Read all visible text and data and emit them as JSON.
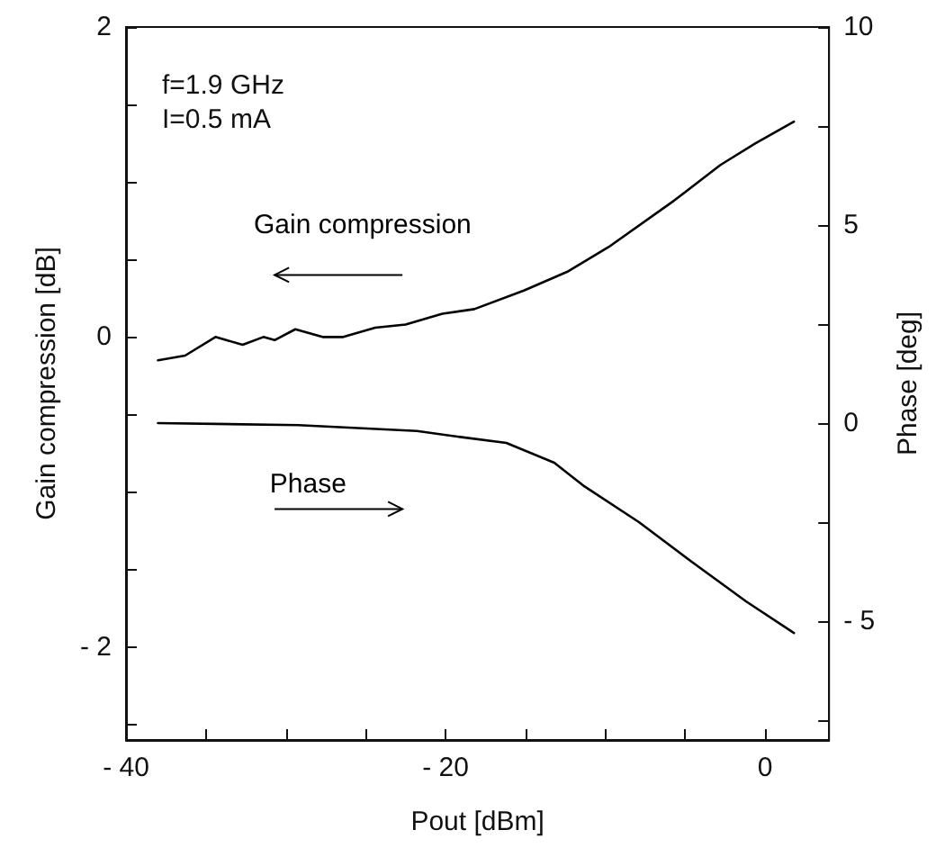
{
  "chart_data": {
    "type": "line",
    "xlabel": "Pout [dBm]",
    "ylabel": "Gain compression [dB]",
    "y2label": "Phase [deg]",
    "annotations": [
      "f=1.9 GHz",
      "I=0.5 mA"
    ],
    "xlim": [
      -40,
      4
    ],
    "xticks": [
      {
        "value": -40,
        "label": "- 40"
      },
      {
        "value": -35,
        "label": null
      },
      {
        "value": -30,
        "label": null
      },
      {
        "value": -25,
        "label": null
      },
      {
        "value": -20,
        "label": "- 20"
      },
      {
        "value": -15,
        "label": null
      },
      {
        "value": -10,
        "label": null
      },
      {
        "value": -5,
        "label": null
      },
      0
    ],
    "ylim": [
      -2.6,
      2
    ],
    "yticks": [
      {
        "value": -2.5,
        "label": null
      },
      {
        "value": -2,
        "label": "- 2"
      },
      {
        "value": -1.5,
        "label": null
      },
      {
        "value": -1,
        "label": null
      },
      {
        "value": -0.5,
        "label": null
      },
      0,
      {
        "value": 0.5,
        "label": null
      },
      {
        "value": 1,
        "label": null
      },
      {
        "value": 1.5,
        "label": null
      },
      2
    ],
    "y2lim": [
      -8,
      10
    ],
    "y2ticks": [
      {
        "value": -7.5,
        "label": null
      },
      {
        "value": -5,
        "label": "- 5"
      },
      {
        "value": -2.5,
        "label": null
      },
      0,
      {
        "value": 2.5,
        "label": null
      },
      5,
      {
        "value": 7.5,
        "label": null
      },
      10
    ],
    "grid": false,
    "legend": false,
    "marker": "none",
    "line_style": "solid",
    "series": [
      {
        "name": "Gain compression",
        "color": "#000000",
        "axis": "y",
        "x": [
          -38,
          -36.3,
          -34.4,
          -32.7,
          -31.4,
          -30.7,
          -29.4,
          -27.7,
          -26.4,
          -24.4,
          -22.5,
          -20.2,
          -18.2,
          -15.1,
          -12.4,
          -9.8,
          -5.7,
          -2.8,
          -0.6,
          1.8
        ],
        "values": [
          -0.15,
          -0.12,
          0.0,
          -0.05,
          0.0,
          -0.02,
          0.05,
          0.0,
          0.0,
          0.06,
          0.08,
          0.15,
          0.18,
          0.3,
          0.42,
          0.58,
          0.88,
          1.11,
          1.25,
          1.39
        ]
      },
      {
        "name": "Phase",
        "color": "#000000",
        "axis": "y2",
        "x": [
          -38,
          -29.2,
          -21.8,
          -19.1,
          -16.2,
          -13.2,
          -11.3,
          -7.9,
          -4.6,
          -1.2,
          1.8
        ],
        "values": [
          0.0,
          -0.05,
          -0.2,
          -0.35,
          -0.5,
          -1.0,
          -1.6,
          -2.5,
          -3.5,
          -4.5,
          -5.3
        ]
      }
    ]
  }
}
